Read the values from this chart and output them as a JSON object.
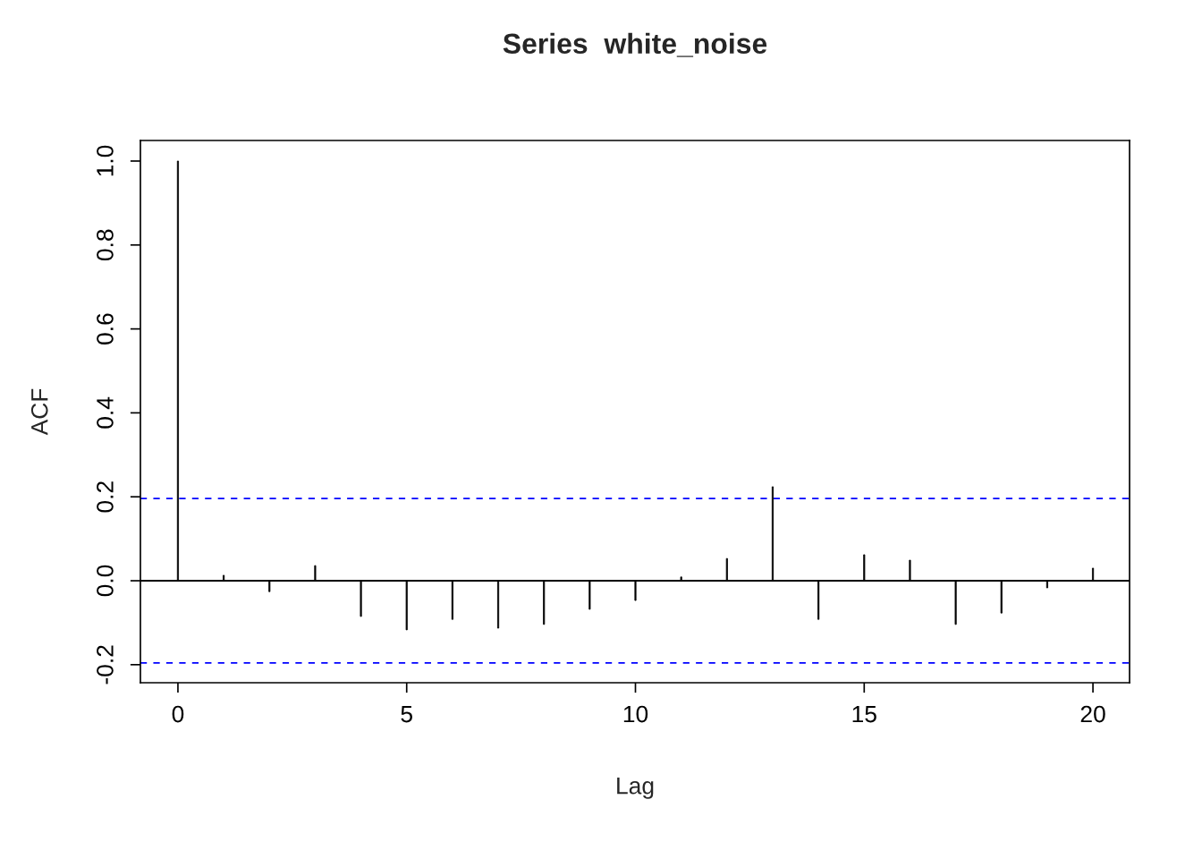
{
  "chart_data": {
    "type": "bar",
    "title": "Series  white_noise",
    "xlabel": "Lag",
    "ylabel": "ACF",
    "x": [
      0,
      1,
      2,
      3,
      4,
      5,
      6,
      7,
      8,
      9,
      10,
      11,
      12,
      13,
      14,
      15,
      16,
      17,
      18,
      19,
      20
    ],
    "series": [
      {
        "color": "#000000",
        "values": [
          1.0,
          0.013,
          -0.026,
          0.036,
          -0.085,
          -0.117,
          -0.092,
          -0.113,
          -0.104,
          -0.068,
          -0.047,
          0.009,
          0.053,
          0.224,
          -0.092,
          0.062,
          0.049,
          -0.104,
          -0.077,
          -0.017,
          0.03
        ]
      }
    ],
    "xlim": [
      -0.82,
      20.8
    ],
    "xticks": [
      0,
      5,
      10,
      15,
      20
    ],
    "ylim": [
      -0.243,
      1.049
    ],
    "yticks": [
      {
        "value": -0.2,
        "label": "-0.2"
      },
      {
        "value": 0,
        "label": "0.0"
      },
      {
        "value": 0.2,
        "label": "0.2"
      },
      {
        "value": 0.4,
        "label": "0.4"
      },
      {
        "value": 0.6,
        "label": "0.6"
      },
      {
        "value": 0.8,
        "label": "0.8"
      },
      {
        "value": 1.0,
        "label": "1.0"
      }
    ],
    "ref_lines": [
      {
        "axis": "y",
        "value": 0,
        "color": "#000000",
        "line_style": "solid"
      },
      {
        "axis": "y",
        "value": 0.196,
        "color": "#0000ff",
        "line_style": "dashed"
      },
      {
        "axis": "y",
        "value": -0.196,
        "color": "#0000ff",
        "line_style": "dashed"
      }
    ],
    "grid": false
  }
}
